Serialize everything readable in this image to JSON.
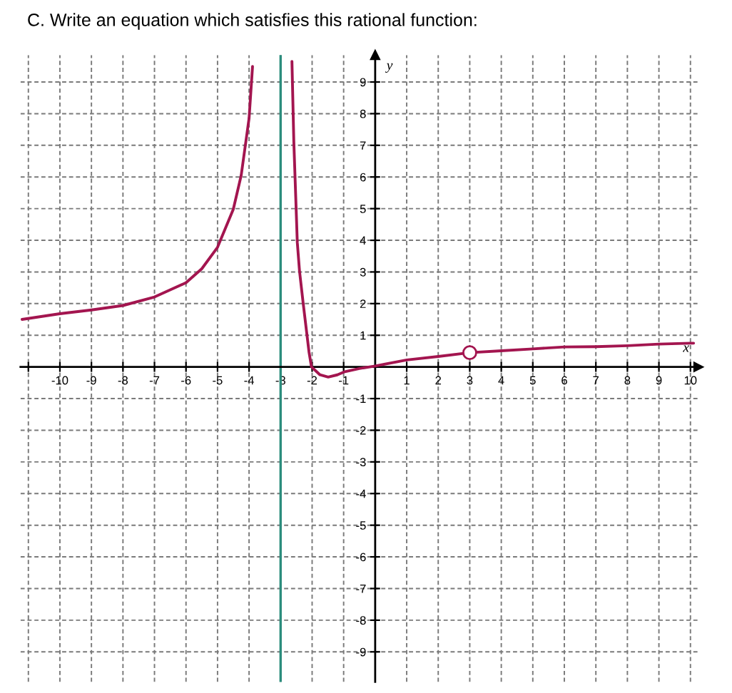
{
  "chart_data": {
    "type": "line",
    "title": "C. Write an equation which satisfies this rational function:",
    "xlabel": "x",
    "ylabel": "y",
    "series": [
      {
        "color": "#a3154f",
        "x": [
          -11.2,
          -10,
          -9,
          -8,
          -7,
          -6,
          -5.5,
          -5,
          -4.5,
          -4.25,
          -4,
          -3.89,
          -3,
          -2.64,
          -2.58,
          -2.47,
          -2.4,
          -2.28,
          -2.1,
          -2.02,
          -1.75,
          -1.49,
          -1.2,
          -0.96,
          -0.5,
          0,
          1,
          2,
          3,
          4,
          5,
          6,
          7,
          8,
          9,
          10,
          10.1
        ],
        "values": [
          1.5,
          1.68,
          1.8,
          1.94,
          2.21,
          2.66,
          3.1,
          3.78,
          4.98,
          6.05,
          7.85,
          9.49,
          null,
          9.65,
          7.1,
          3.93,
          3.03,
          1.98,
          0.48,
          0,
          -0.25,
          -0.32,
          -0.25,
          -0.15,
          -0.05,
          0.03,
          0.22,
          0.33,
          0.45,
          0.51,
          0.57,
          0.63,
          0.64,
          0.67,
          0.72,
          0.75,
          0.75
        ]
      },
      {
        "type": "scatter",
        "marker": "circle",
        "color": "#a3154f",
        "x": [
          3
        ],
        "values": [
          0.45
        ]
      }
    ],
    "xlim": [
      -11.25,
      10.25
    ],
    "ylim": [
      -9.95,
      9.85
    ],
    "xticks": [
      {
        "value": -11,
        "label": null
      },
      -10,
      -9,
      -8,
      -7,
      -6,
      -5,
      -4,
      -3,
      -2,
      -1,
      1,
      2,
      3,
      4,
      5,
      6,
      7,
      8,
      9,
      10
    ],
    "yticks": [
      -9,
      -8,
      -7,
      -6,
      -5,
      -4,
      -3,
      -2,
      -1,
      1,
      2,
      3,
      4,
      5,
      6,
      7,
      8,
      9
    ],
    "ref_lines": [
      {
        "axis": "x",
        "value": -3,
        "color": "#2a8c7c",
        "line_style": "solid"
      }
    ],
    "grid": true,
    "legend": false
  }
}
